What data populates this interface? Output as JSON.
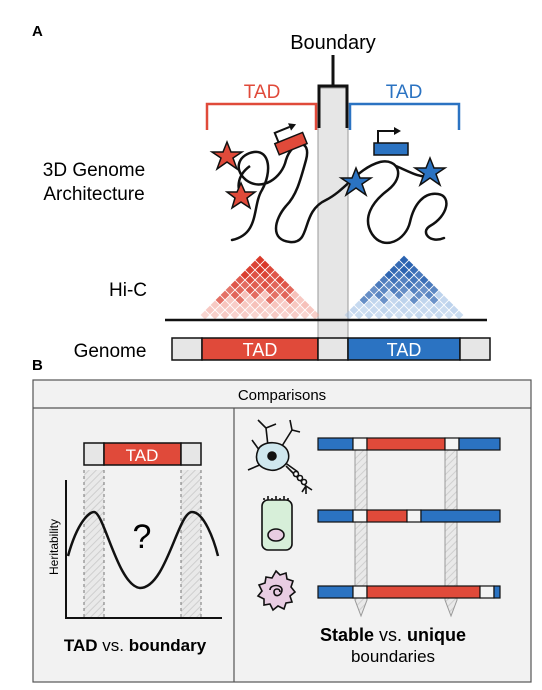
{
  "panel_a": {
    "letter": "A",
    "boundary_label": "Boundary",
    "tad_left_label": "TAD",
    "tad_right_label": "TAD",
    "arch_label_line1": "3D Genome",
    "arch_label_line2": "Architecture",
    "hic_label": "Hi-C",
    "genome_label": "Genome",
    "genome_tad_left": "TAD",
    "genome_tad_right": "TAD"
  },
  "panel_b": {
    "letter": "B",
    "header": "Comparisons",
    "left_tad_label": "TAD",
    "y_axis_label": "Heritability",
    "question_mark": "?",
    "caption_bold1": "TAD",
    "caption_mid": " vs. ",
    "caption_bold2": "boundary",
    "right_caption_bold1": "Stable",
    "right_caption_mid": " vs. ",
    "right_caption_bold2": "unique",
    "right_caption_line2": "boundaries"
  },
  "colors": {
    "tad_red": "#e04a3a",
    "tad_blue": "#2b73c2",
    "boundary_grey": "#e6e6e6",
    "panel_bg": "#f2f2f2",
    "neuron_fill": "#cfe7ee",
    "epithelial_fill": "#d7efd9",
    "immune_fill": "#e8cde2"
  },
  "icons": [
    "neuron-icon",
    "epithelial-cell-icon",
    "immune-cell-icon",
    "promoter-arrow-icon",
    "enhancer-star-icon"
  ]
}
